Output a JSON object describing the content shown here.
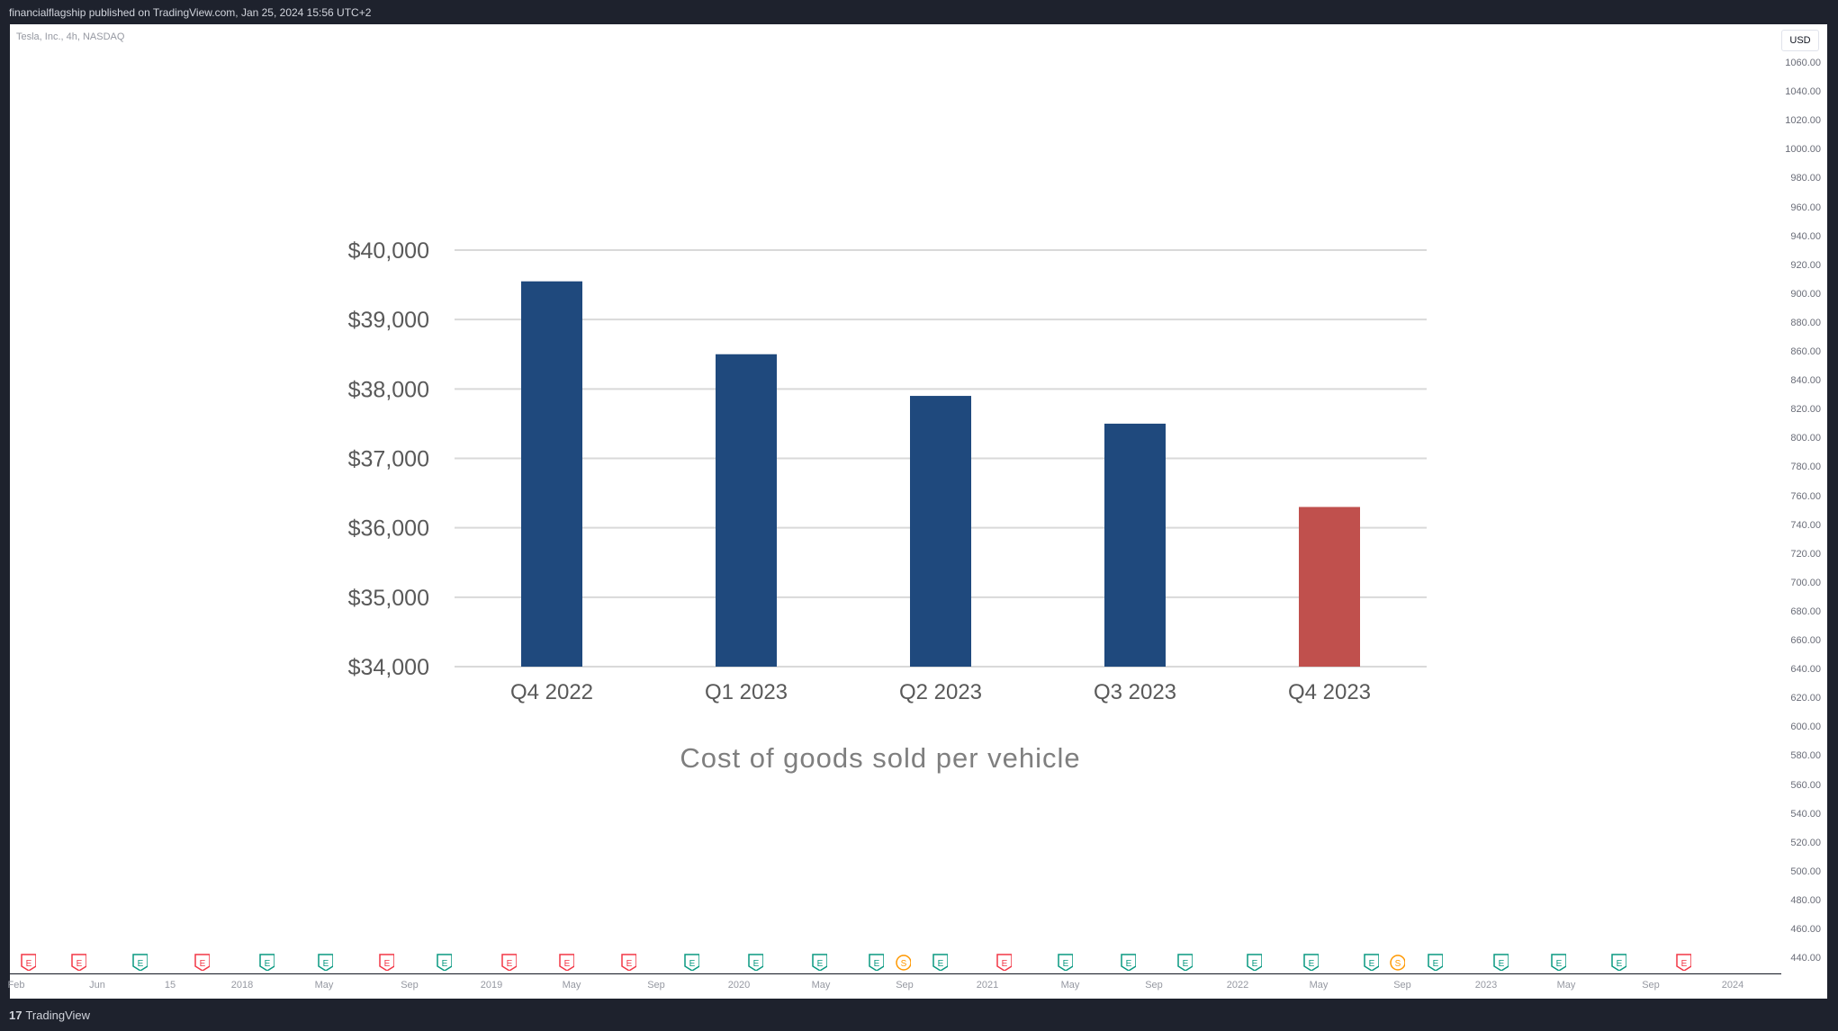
{
  "header": {
    "published": "financialflagship published on TradingView.com, Jan 25, 2024 15:56 UTC+2"
  },
  "symbol": {
    "label": "Tesla, Inc., 4h, NASDAQ"
  },
  "currency": "USD",
  "price_scale": [
    "1060.00",
    "1040.00",
    "1020.00",
    "1000.00",
    "980.00",
    "960.00",
    "940.00",
    "920.00",
    "900.00",
    "880.00",
    "860.00",
    "840.00",
    "820.00",
    "800.00",
    "780.00",
    "760.00",
    "740.00",
    "720.00",
    "700.00",
    "680.00",
    "660.00",
    "640.00",
    "620.00",
    "600.00",
    "580.00",
    "560.00",
    "540.00",
    "520.00",
    "500.00",
    "480.00",
    "460.00",
    "440.00"
  ],
  "time_axis": [
    "Feb",
    "Jun",
    "15",
    "2018",
    "May",
    "Sep",
    "2019",
    "May",
    "Sep",
    "2020",
    "May",
    "Sep",
    "2021",
    "May",
    "Sep",
    "2022",
    "May",
    "Sep",
    "2023",
    "May",
    "Sep",
    "2024"
  ],
  "events": [
    "E",
    "E",
    "E",
    "E",
    "E",
    "E",
    "E",
    "E",
    "E",
    "E",
    "E",
    "E",
    "E",
    "E",
    "S",
    "E",
    "E",
    "E",
    "E",
    "E",
    "E",
    "E",
    "E",
    "S",
    "E",
    "E",
    "E",
    "E",
    "E",
    "E"
  ],
  "colors": {
    "bar": "#1f497d",
    "bar_highlight": "#c0504d",
    "earnings_up": "#089981",
    "earnings_down": "#f23645",
    "split": "#ff9800"
  },
  "footer": {
    "brand_logo": "17",
    "brand": "TradingView"
  },
  "chart_data": {
    "type": "bar",
    "categories": [
      "Q4 2022",
      "Q1 2023",
      "Q2 2023",
      "Q3 2023",
      "Q4 2023"
    ],
    "values": [
      39550,
      38500,
      37900,
      37500,
      36300
    ],
    "ylim": [
      34000,
      40000
    ],
    "yticks": [
      "$34,000",
      "$35,000",
      "$36,000",
      "$37,000",
      "$38,000",
      "$39,000",
      "$40,000"
    ],
    "title": "Cost of goods sold per vehicle",
    "xlabel": "",
    "ylabel": "",
    "grid": true,
    "highlight_index": 4
  }
}
